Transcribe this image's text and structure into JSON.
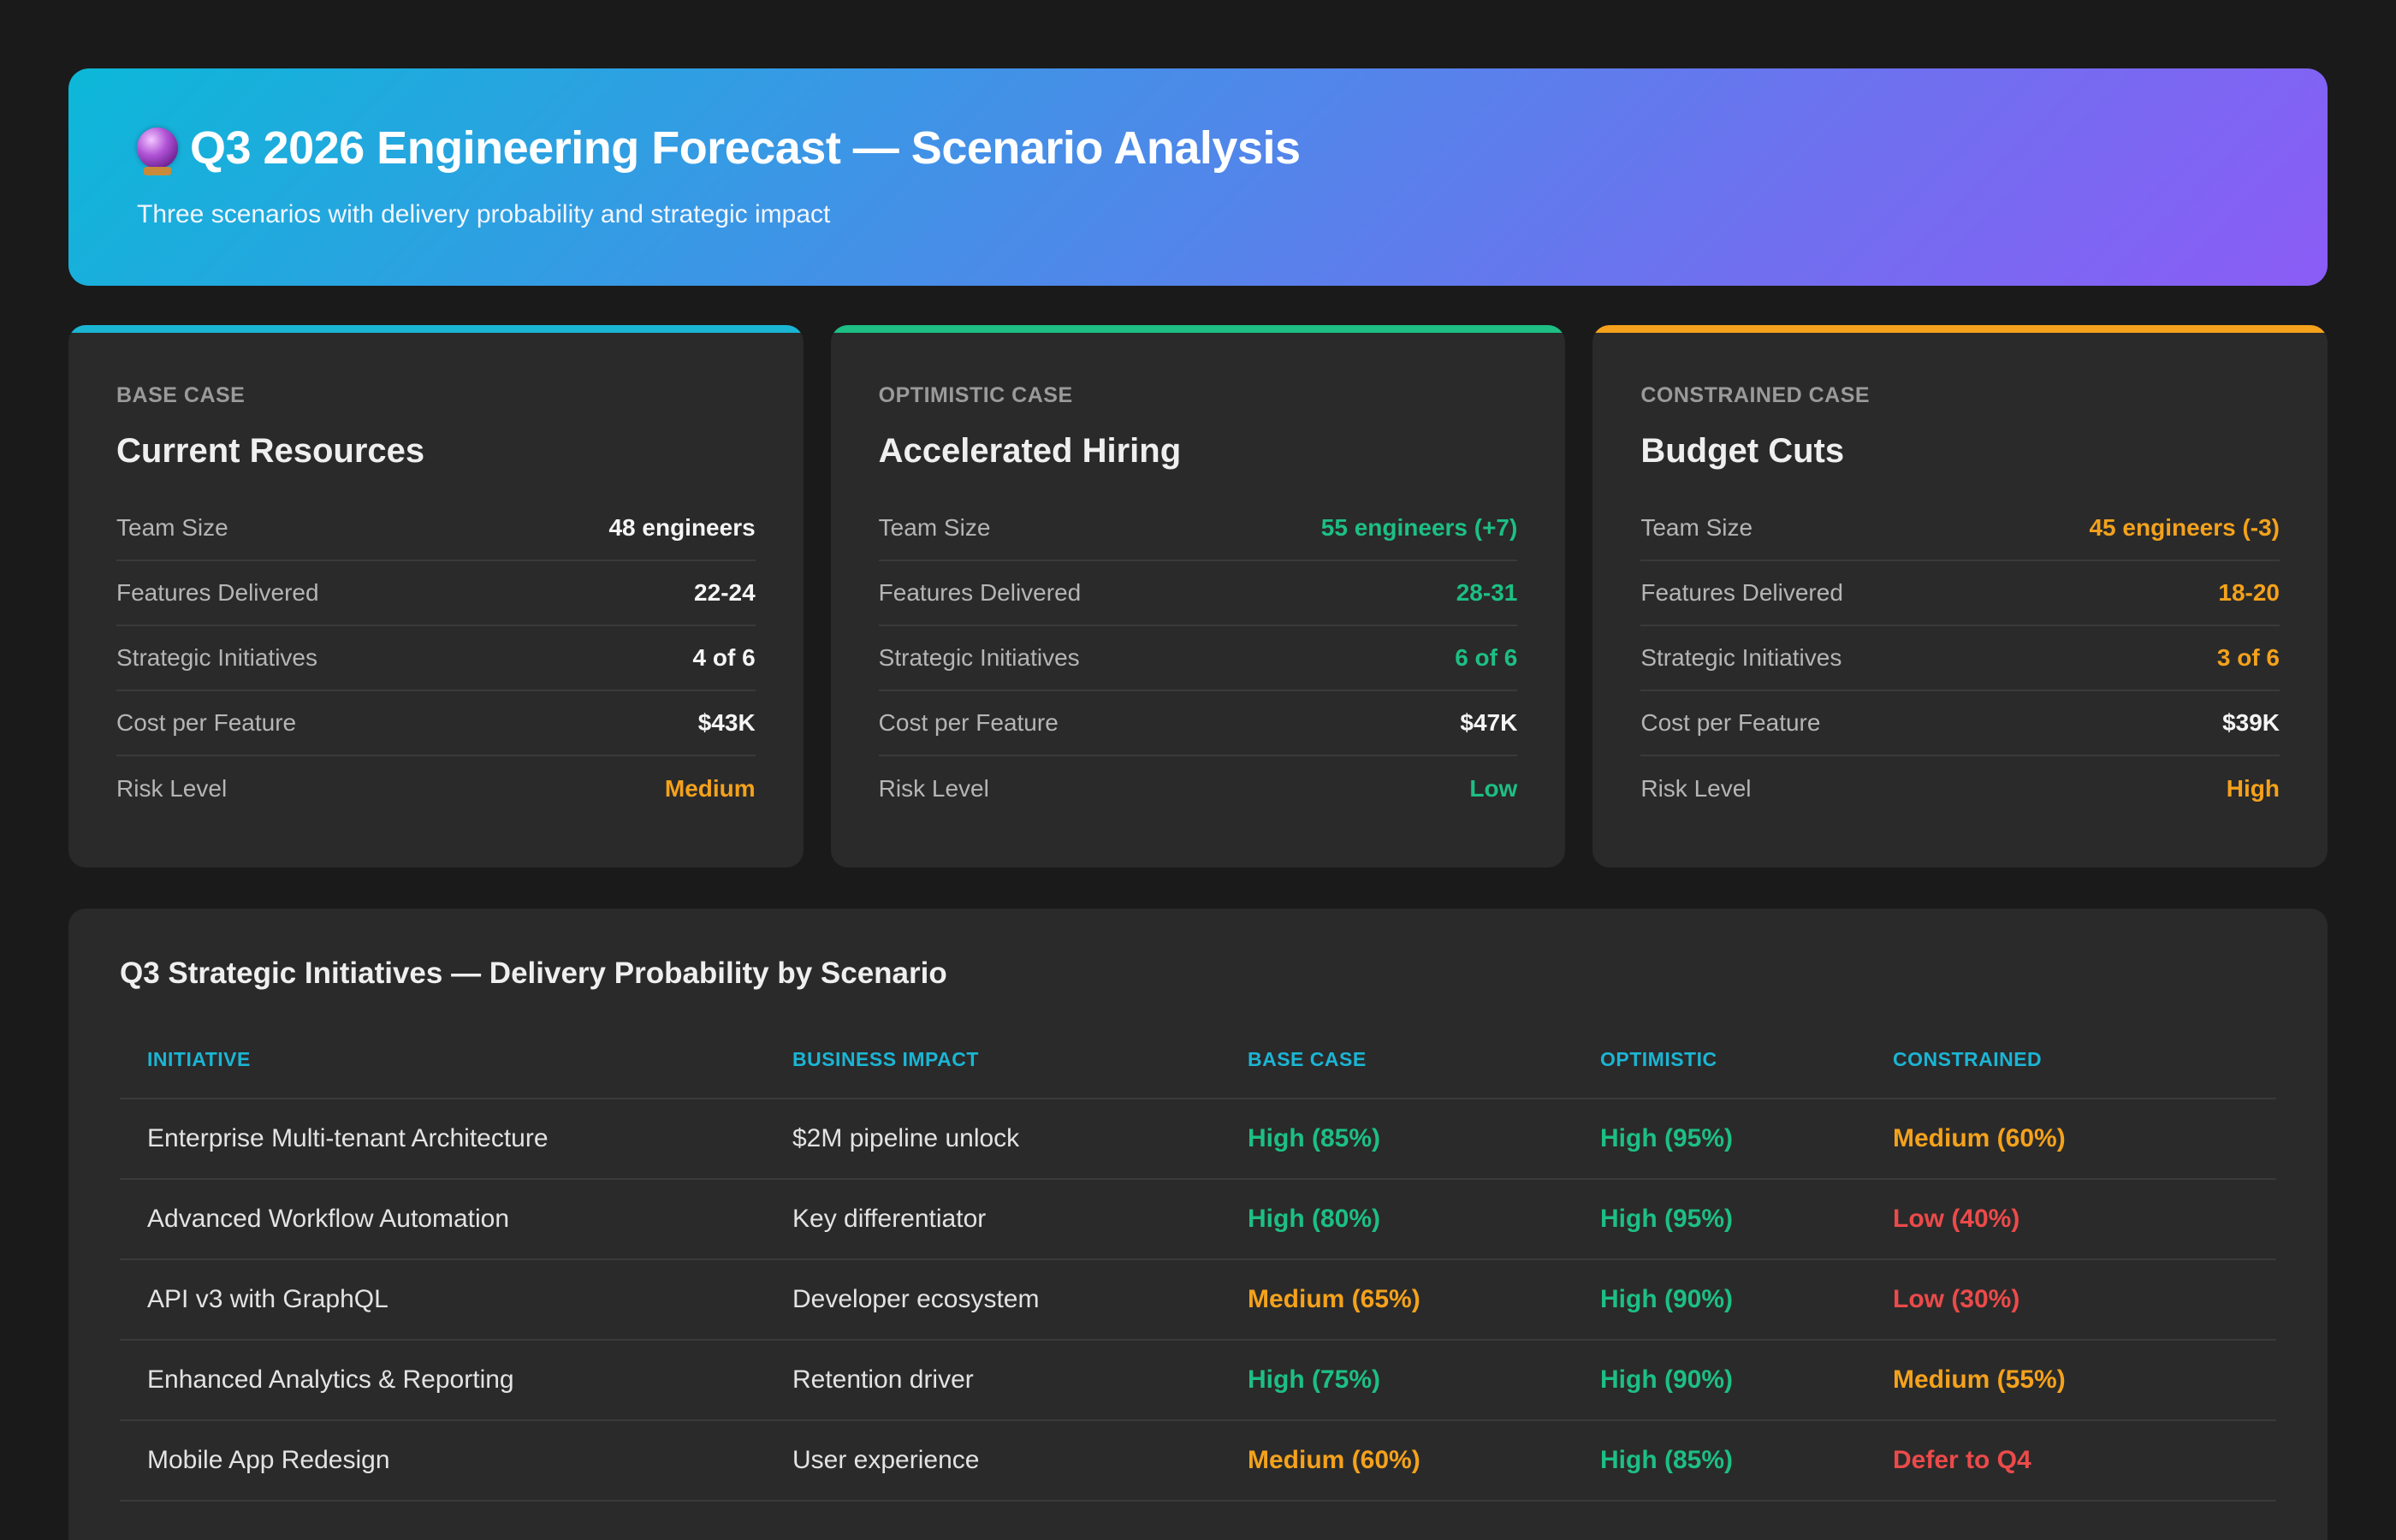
{
  "header": {
    "title": "Q3 2026 Engineering Forecast — Scenario Analysis",
    "subtitle": "Three scenarios with delivery probability and strategic impact",
    "icon": "crystal-ball-icon"
  },
  "colors": {
    "base": "#1bb5d4",
    "optimistic": "#1dbf84",
    "constrained": "#f4a21c",
    "high": "#1dbf84",
    "medium": "#f4a21c",
    "low": "#ec4a4a"
  },
  "scenarios": [
    {
      "kicker": "BASE CASE",
      "title": "Current Resources",
      "accent": "#1bb5d4",
      "metrics": [
        {
          "label": "Team Size",
          "value": "48 engineers",
          "tone": "white"
        },
        {
          "label": "Features Delivered",
          "value": "22-24",
          "tone": "white"
        },
        {
          "label": "Strategic Initiatives",
          "value": "4 of 6",
          "tone": "white"
        },
        {
          "label": "Cost per Feature",
          "value": "$43K",
          "tone": "white"
        },
        {
          "label": "Risk Level",
          "value": "Medium",
          "tone": "orange"
        }
      ]
    },
    {
      "kicker": "OPTIMISTIC CASE",
      "title": "Accelerated Hiring",
      "accent": "#1dbf84",
      "metrics": [
        {
          "label": "Team Size",
          "value": "55 engineers (+7)",
          "tone": "green"
        },
        {
          "label": "Features Delivered",
          "value": "28-31",
          "tone": "green"
        },
        {
          "label": "Strategic Initiatives",
          "value": "6 of 6",
          "tone": "green"
        },
        {
          "label": "Cost per Feature",
          "value": "$47K",
          "tone": "white"
        },
        {
          "label": "Risk Level",
          "value": "Low",
          "tone": "green"
        }
      ]
    },
    {
      "kicker": "CONSTRAINED CASE",
      "title": "Budget Cuts",
      "accent": "#f4a21c",
      "metrics": [
        {
          "label": "Team Size",
          "value": "45 engineers (-3)",
          "tone": "orange"
        },
        {
          "label": "Features Delivered",
          "value": "18-20",
          "tone": "orange"
        },
        {
          "label": "Strategic Initiatives",
          "value": "3 of 6",
          "tone": "orange"
        },
        {
          "label": "Cost per Feature",
          "value": "$39K",
          "tone": "white"
        },
        {
          "label": "Risk Level",
          "value": "High",
          "tone": "orange"
        }
      ]
    }
  ],
  "initiatives": {
    "title": "Q3 Strategic Initiatives — Delivery Probability by Scenario",
    "columns": [
      "INITIATIVE",
      "BUSINESS IMPACT",
      "BASE CASE",
      "OPTIMISTIC",
      "CONSTRAINED"
    ],
    "rows": [
      {
        "initiative": "Enterprise Multi-tenant Architecture",
        "impact": "$2M pipeline unlock",
        "base": {
          "text": "High (85%)",
          "tone": "green"
        },
        "optimistic": {
          "text": "High (95%)",
          "tone": "green"
        },
        "constrained": {
          "text": "Medium (60%)",
          "tone": "orange"
        }
      },
      {
        "initiative": "Advanced Workflow Automation",
        "impact": "Key differentiator",
        "base": {
          "text": "High (80%)",
          "tone": "green"
        },
        "optimistic": {
          "text": "High (95%)",
          "tone": "green"
        },
        "constrained": {
          "text": "Low (40%)",
          "tone": "red"
        }
      },
      {
        "initiative": "API v3 with GraphQL",
        "impact": "Developer ecosystem",
        "base": {
          "text": "Medium (65%)",
          "tone": "orange"
        },
        "optimistic": {
          "text": "High (90%)",
          "tone": "green"
        },
        "constrained": {
          "text": "Low (30%)",
          "tone": "red"
        }
      },
      {
        "initiative": "Enhanced Analytics & Reporting",
        "impact": "Retention driver",
        "base": {
          "text": "High (75%)",
          "tone": "green"
        },
        "optimistic": {
          "text": "High (90%)",
          "tone": "green"
        },
        "constrained": {
          "text": "Medium (55%)",
          "tone": "orange"
        }
      },
      {
        "initiative": "Mobile App Redesign",
        "impact": "User experience",
        "base": {
          "text": "Medium (60%)",
          "tone": "orange"
        },
        "optimistic": {
          "text": "High (85%)",
          "tone": "green"
        },
        "constrained": {
          "text": "Defer to Q4",
          "tone": "red"
        }
      }
    ]
  }
}
